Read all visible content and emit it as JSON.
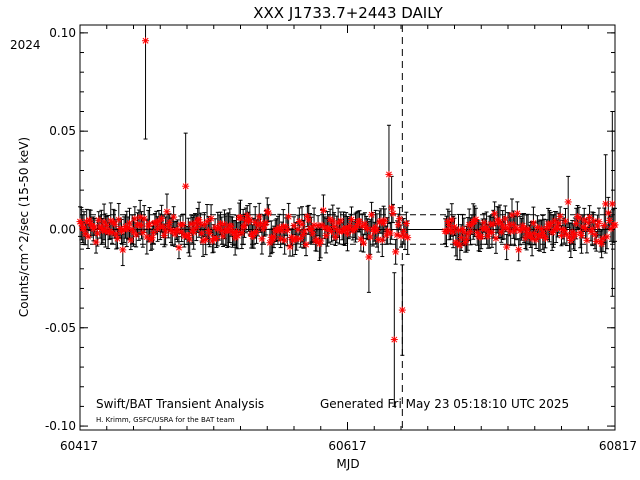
{
  "colors": {
    "marker": "#ff0000",
    "errorbar": "#000000",
    "background": "#ffffff"
  },
  "chart_data": {
    "type": "scatter",
    "title": "XXX J1733.7+2443 DAILY",
    "xlabel": "MJD",
    "ylabel": "Counts/cm^2/sec (15-50 keV)",
    "year_label": "2024",
    "xlim": [
      60417,
      60817
    ],
    "ylim": [
      -0.102,
      0.104
    ],
    "xticks": [
      60417,
      60617,
      60817
    ],
    "yticks": [
      -0.1,
      -0.05,
      0.0,
      0.05,
      0.1
    ],
    "ytick_labels": [
      "-0.10",
      "-0.05",
      "0.00",
      "0.05",
      "0.10"
    ],
    "grid": false,
    "reference_lines": {
      "zero_level": 0.0,
      "upper_dashed": 0.0075,
      "lower_dashed": -0.0075,
      "vertical_dashed_mjd": 60658
    },
    "footer_left": "Swift/BAT Transient Analysis",
    "footer_credit": "H. Krimm, GSFC/USRA for the BAT team",
    "footer_right": "Generated Fri May 23 05:18:10 UTC 2025",
    "notable_points": [
      {
        "x": 60466,
        "y": 0.096,
        "err": 0.05
      },
      {
        "x": 60496,
        "y": 0.022,
        "err": 0.027
      },
      {
        "x": 60633,
        "y": -0.014,
        "err": 0.018
      },
      {
        "x": 60648,
        "y": 0.028,
        "err": 0.025
      },
      {
        "x": 60650,
        "y": 0.011,
        "err": 0.016
      },
      {
        "x": 60652,
        "y": -0.056,
        "err": 0.034
      },
      {
        "x": 60658,
        "y": -0.041,
        "err": 0.023
      },
      {
        "x": 60782,
        "y": 0.014,
        "err": 0.013
      },
      {
        "x": 60810,
        "y": 0.013,
        "err": 0.025
      },
      {
        "x": 60815,
        "y": 0.013,
        "err": 0.047
      }
    ],
    "gap_mjd": [
      60662,
      60690
    ],
    "baseline_scatter": 0.004,
    "typical_error": 0.007
  }
}
